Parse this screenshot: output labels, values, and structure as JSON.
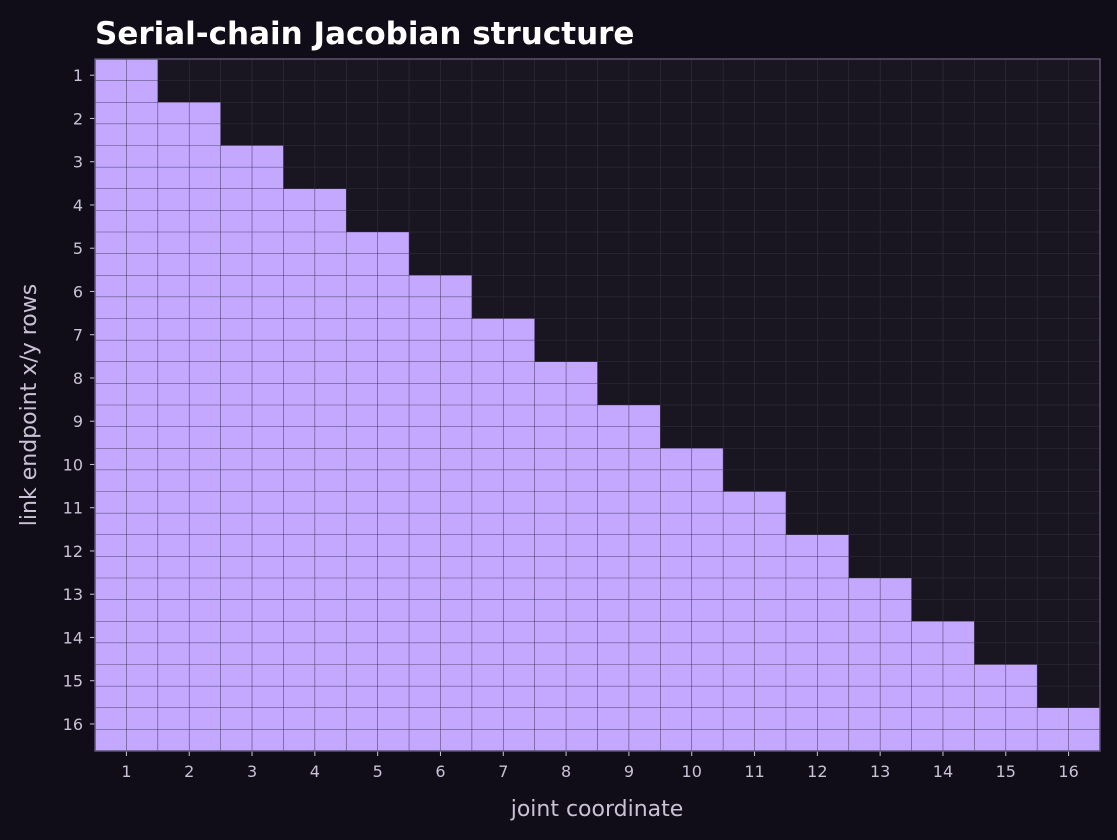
{
  "chart_data": {
    "type": "heatmap",
    "title": "Serial-chain Jacobian structure",
    "xlabel": "joint coordinate",
    "ylabel": "link endpoint x/y rows",
    "x_tick_labels": [
      "1",
      "2",
      "3",
      "4",
      "5",
      "6",
      "7",
      "8",
      "9",
      "10",
      "11",
      "12",
      "13",
      "14",
      "15",
      "16"
    ],
    "y_tick_labels": [
      "1",
      "2",
      "3",
      "4",
      "5",
      "6",
      "7",
      "8",
      "9",
      "10",
      "11",
      "12",
      "13",
      "14",
      "15",
      "16"
    ],
    "n_joints": 16,
    "n_links": 16,
    "rows_per_link": 2,
    "description": "Lower-triangular block structure: the x and y rows of link i are nonzero for joints 1..i",
    "nonzero_joints_per_link": [
      1,
      2,
      3,
      4,
      5,
      6,
      7,
      8,
      9,
      10,
      11,
      12,
      13,
      14,
      15,
      16
    ],
    "grid": true,
    "colors": {
      "background": "#100d18",
      "plot_background": "#191621",
      "nonzero_fill": "#c4a7ff",
      "zero_fill": "#191621",
      "grid": "#3a3448",
      "axes_text": "#c9c2d6",
      "title_text": "#ffffff",
      "frame": "#5a5270"
    }
  }
}
